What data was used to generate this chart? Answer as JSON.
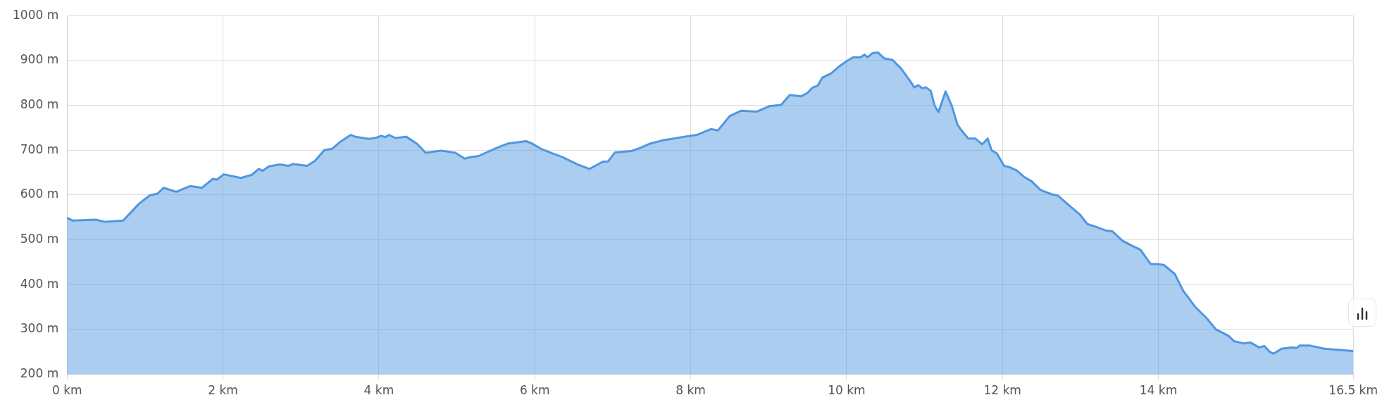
{
  "chart_data": {
    "type": "area",
    "series": [
      {
        "color": "#4f97e0",
        "x": [
          0,
          0.07,
          0.37,
          0.49,
          0.72,
          0.92,
          1.06,
          1.16,
          1.24,
          1.4,
          1.58,
          1.73,
          1.87,
          1.92,
          2.01,
          2.23,
          2.37,
          2.46,
          2.51,
          2.59,
          2.73,
          2.84,
          2.9,
          3.08,
          3.18,
          3.3,
          3.4,
          3.5,
          3.64,
          3.7,
          3.87,
          3.97,
          4.03,
          4.08,
          4.13,
          4.21,
          4.35,
          4.49,
          4.6,
          4.8,
          4.98,
          5.1,
          5.16,
          5.28,
          5.5,
          5.66,
          5.89,
          5.96,
          6.09,
          6.21,
          6.36,
          6.55,
          6.7,
          6.87,
          6.94,
          7.03,
          7.24,
          7.34,
          7.47,
          7.62,
          7.92,
          8.08,
          8.26,
          8.35,
          8.5,
          8.65,
          8.85,
          9.01,
          9.16,
          9.27,
          9.42,
          9.5,
          9.56,
          9.63,
          9.69,
          9.8,
          9.9,
          9.99,
          10.08,
          10.18,
          10.23,
          10.27,
          10.33,
          10.4,
          10.48,
          10.59,
          10.7,
          10.82,
          10.87,
          10.92,
          10.97,
          11.02,
          11.08,
          11.13,
          11.18,
          11.27,
          11.35,
          11.42,
          11.47,
          11.56,
          11.65,
          11.74,
          11.81,
          11.86,
          11.93,
          12.02,
          12.09,
          12.18,
          12.28,
          12.37,
          12.49,
          12.64,
          12.71,
          12.88,
          12.99,
          13.09,
          13.2,
          13.32,
          13.41,
          13.54,
          13.66,
          13.77,
          13.9,
          13.98,
          14.07,
          14.21,
          14.32,
          14.47,
          14.62,
          14.74,
          14.9,
          14.97,
          15.09,
          15.18,
          15.29,
          15.36,
          15.43,
          15.48,
          15.58,
          15.71,
          15.78,
          15.81,
          15.95,
          16.13,
          16.5
        ],
        "values": [
          549,
          543,
          545,
          540,
          543,
          580,
          599,
          603,
          616,
          607,
          620,
          616,
          636,
          634,
          646,
          638,
          645,
          658,
          654,
          664,
          668,
          665,
          669,
          665,
          676,
          700,
          703,
          718,
          734,
          730,
          725,
          728,
          732,
          729,
          734,
          727,
          730,
          714,
          694,
          699,
          694,
          681,
          684,
          687,
          704,
          715,
          720,
          715,
          702,
          694,
          684,
          668,
          658,
          674,
          675,
          695,
          698,
          704,
          714,
          721,
          730,
          734,
          747,
          744,
          776,
          788,
          786,
          798,
          801,
          823,
          820,
          828,
          839,
          844,
          862,
          871,
          886,
          897,
          907,
          907,
          913,
          907,
          916,
          918,
          905,
          901,
          882,
          853,
          840,
          845,
          838,
          840,
          832,
          799,
          785,
          831,
          799,
          758,
          745,
          726,
          726,
          713,
          726,
          700,
          692,
          665,
          662,
          655,
          640,
          631,
          611,
          601,
          599,
          573,
          557,
          535,
          529,
          521,
          519,
          498,
          487,
          478,
          446,
          446,
          444,
          424,
          386,
          351,
          325,
          300,
          286,
          274,
          269,
          271,
          260,
          263,
          250,
          246,
          257,
          260,
          259,
          264,
          264,
          257,
          252
        ]
      }
    ],
    "xlim": [
      0,
      16.5
    ],
    "xticks": [
      {
        "value": 0,
        "label": "0 km"
      },
      {
        "value": 2,
        "label": "2 km"
      },
      {
        "value": 4,
        "label": "4 km"
      },
      {
        "value": 6,
        "label": "6 km"
      },
      {
        "value": 8,
        "label": "8 km"
      },
      {
        "value": 10,
        "label": "10 km"
      },
      {
        "value": 12,
        "label": "12 km"
      },
      {
        "value": 14,
        "label": "14 km"
      },
      {
        "value": 16.5,
        "label": "16.5 km"
      }
    ],
    "ylim": [
      200,
      1000
    ],
    "yticks": [
      {
        "value": 200,
        "label": "200 m"
      },
      {
        "value": 300,
        "label": "300 m"
      },
      {
        "value": 400,
        "label": "400 m"
      },
      {
        "value": 500,
        "label": "500 m"
      },
      {
        "value": 600,
        "label": "600 m"
      },
      {
        "value": 700,
        "label": "700 m"
      },
      {
        "value": 800,
        "label": "800 m"
      },
      {
        "value": 900,
        "label": "900 m"
      },
      {
        "value": 1000,
        "label": "1000 m"
      }
    ],
    "grid": true,
    "legend": false
  }
}
